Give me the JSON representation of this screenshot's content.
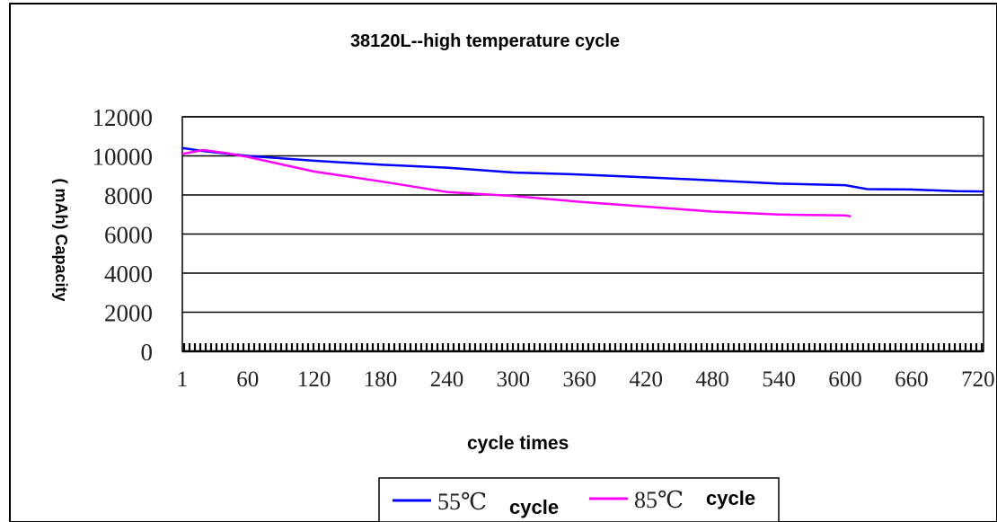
{
  "chart_data": {
    "type": "line",
    "title": "38120L--high temperature cycle",
    "xlabel": "cycle times",
    "ylabel": "( mAh) Capacity",
    "ylim": [
      0,
      12000
    ],
    "xlim": [
      1,
      725
    ],
    "yticks": [
      "12000",
      "10000",
      "8000",
      "6000",
      "4000",
      "2000",
      "0"
    ],
    "xticks": [
      "1",
      "60",
      "120",
      "180",
      "240",
      "300",
      "360",
      "420",
      "480",
      "540",
      "600",
      "660",
      "720"
    ],
    "grid": true,
    "legend_position": "bottom",
    "series": [
      {
        "name_part1": "55℃",
        "name_part2": "cycle",
        "color": "#0000ff",
        "x": [
          1,
          20,
          60,
          120,
          180,
          240,
          300,
          360,
          420,
          480,
          540,
          600,
          620,
          660,
          700,
          725
        ],
        "y": [
          10400,
          10250,
          10000,
          9750,
          9550,
          9400,
          9150,
          9050,
          8900,
          8750,
          8580,
          8500,
          8300,
          8280,
          8200,
          8180
        ]
      },
      {
        "name_part1": "85℃",
        "name_part2": "cycle",
        "color": "#ff00ff",
        "x": [
          1,
          20,
          40,
          60,
          120,
          180,
          240,
          300,
          360,
          420,
          480,
          540,
          600,
          605
        ],
        "y": [
          10100,
          10300,
          10150,
          9950,
          9200,
          8700,
          8150,
          7950,
          7650,
          7400,
          7150,
          7000,
          6950,
          6900
        ]
      }
    ]
  }
}
